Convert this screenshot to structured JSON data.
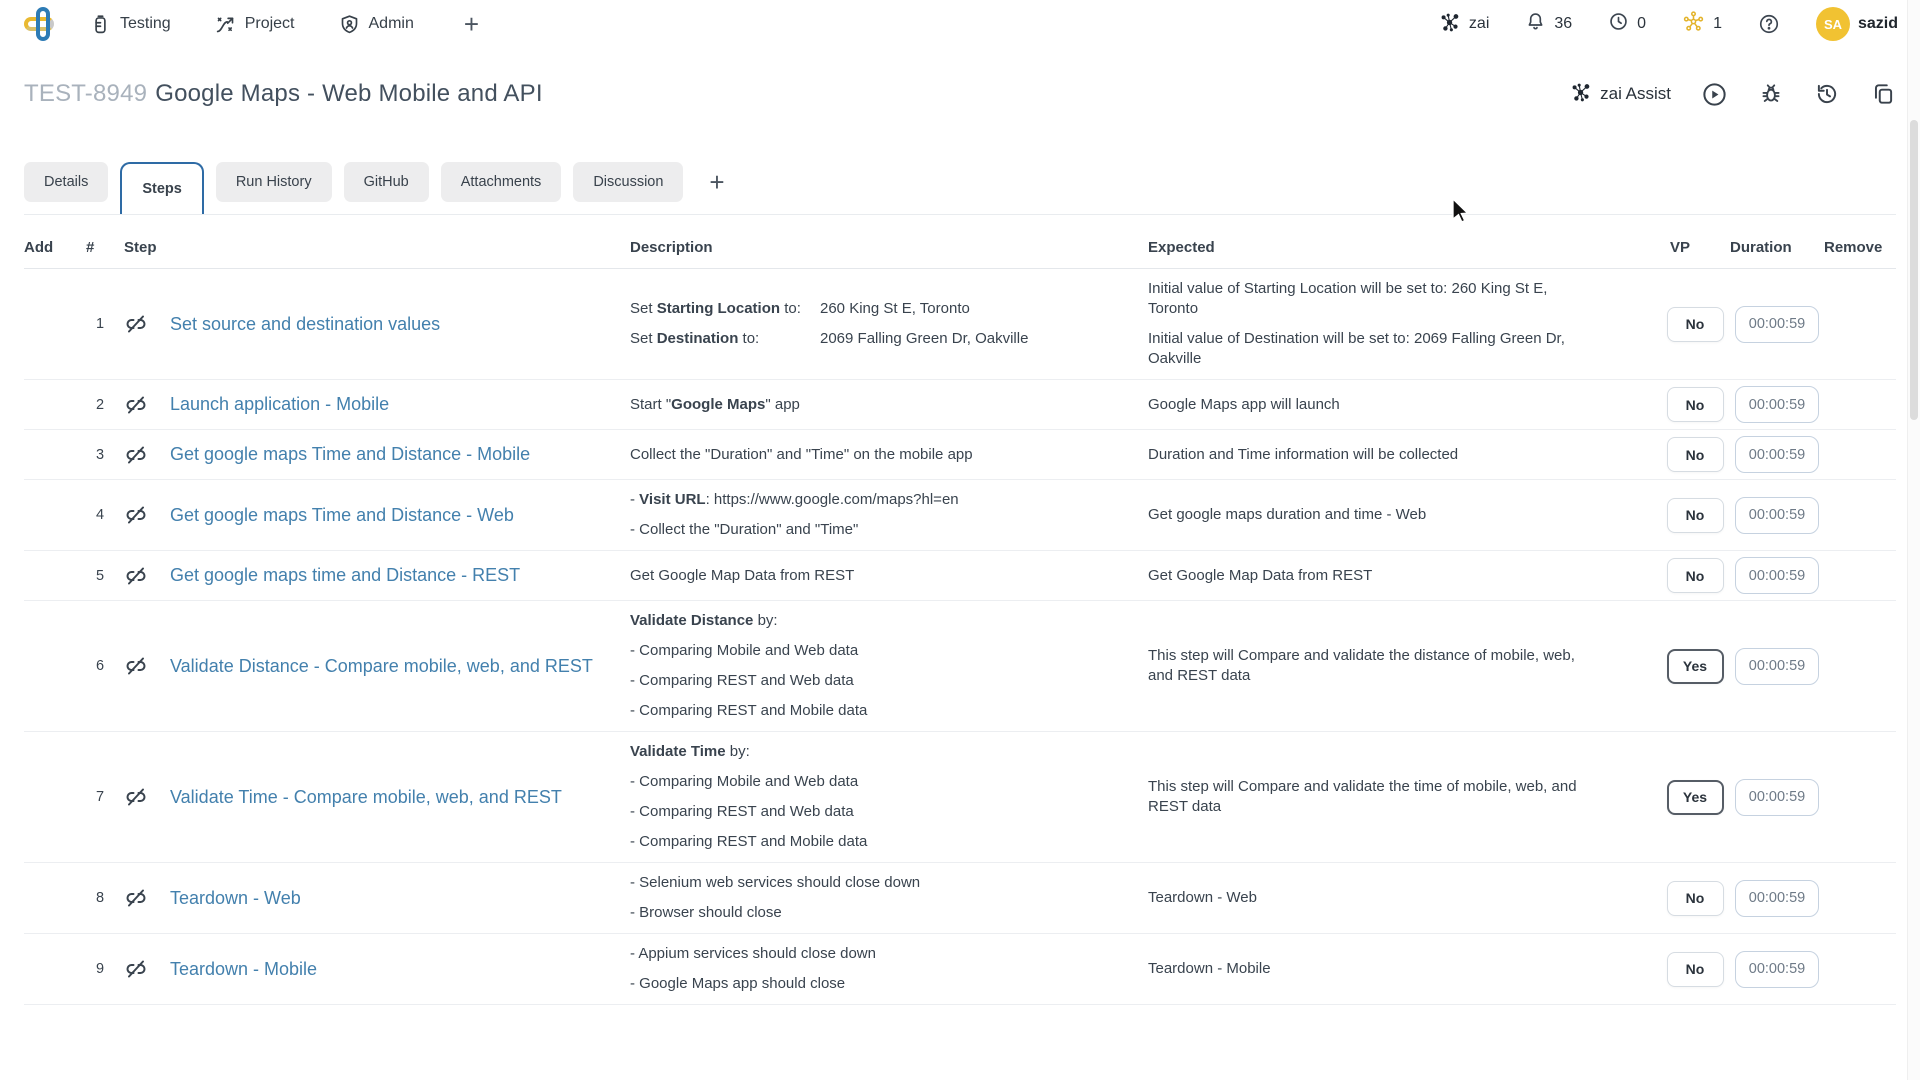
{
  "navbar": {
    "menu": [
      {
        "label": "Testing"
      },
      {
        "label": "Project"
      },
      {
        "label": "Admin"
      }
    ],
    "add_label": "+",
    "right": {
      "workspace_label": "zai",
      "notification_count": "36",
      "timer_count": "0",
      "network_count": "1",
      "avatar_initials": "SA",
      "username": "sazid"
    }
  },
  "header": {
    "ticket_id": "TEST-8949",
    "title": "Google Maps - Web Mobile and API",
    "assist_label": "zai Assist"
  },
  "tabs": {
    "items": [
      {
        "label": "Details"
      },
      {
        "label": "Steps"
      },
      {
        "label": "Run History"
      },
      {
        "label": "GitHub"
      },
      {
        "label": "Attachments"
      },
      {
        "label": "Discussion"
      }
    ],
    "active": "Steps",
    "add_label": "+"
  },
  "table": {
    "columns": [
      "Add",
      "#",
      "Step",
      "Description",
      "Expected",
      "VP",
      "Duration",
      "Remove"
    ],
    "steps": [
      {
        "num": "1",
        "title": "Set source and destination values",
        "desc": [
          "Set **Starting Location** to:\t260 King St E, Toronto",
          "Set **Destination** to:\t2069 Falling Green Dr, Oakville"
        ],
        "expected": [
          "Initial value of Starting Location will be set to: 260 King St E, Toronto",
          "Initial value of Destination will be set to: 2069 Falling Green Dr, Oakville"
        ],
        "vp": "No",
        "duration": "00:00:59"
      },
      {
        "num": "2",
        "title": "Launch application - Mobile",
        "desc": [
          "Start \"**Google Maps**\" app"
        ],
        "expected": [
          "Google Maps app will launch"
        ],
        "vp": "No",
        "duration": "00:00:59"
      },
      {
        "num": "3",
        "title": "Get google maps Time and Distance - Mobile",
        "desc": [
          "Collect the \"Duration\" and \"Time\" on the mobile app"
        ],
        "expected": [
          "Duration and Time information will be collected"
        ],
        "vp": "No",
        "duration": "00:00:59"
      },
      {
        "num": "4",
        "title": "Get google maps Time and Distance - Web",
        "desc": [
          "- **Visit URL**: https://www.google.com/maps?hl=en",
          "- Collect the \"Duration\" and \"Time\""
        ],
        "expected": [
          "Get google maps duration and time - Web"
        ],
        "vp": "No",
        "duration": "00:00:59"
      },
      {
        "num": "5",
        "title": "Get google maps time and Distance - REST",
        "desc": [
          "Get Google Map Data from REST"
        ],
        "expected": [
          "Get Google Map Data from REST"
        ],
        "vp": "No",
        "duration": "00:00:59"
      },
      {
        "num": "6",
        "title": "Validate Distance - Compare mobile, web, and REST",
        "desc": [
          "**Validate Distance** by:",
          "- Comparing Mobile and Web data",
          "- Comparing REST and Web data",
          "- Comparing REST and Mobile data"
        ],
        "expected": [
          "This step will Compare and validate the distance of mobile, web, and REST data"
        ],
        "vp": "Yes",
        "duration": "00:00:59"
      },
      {
        "num": "7",
        "title": "Validate Time - Compare mobile, web, and REST",
        "desc": [
          "**Validate Time** by:",
          "- Comparing Mobile and Web data",
          "- Comparing REST and Web data",
          "- Comparing REST and Mobile data"
        ],
        "expected": [
          "This step will Compare and validate the time of mobile, web, and REST data"
        ],
        "vp": "Yes",
        "duration": "00:00:59"
      },
      {
        "num": "8",
        "title": "Teardown - Web",
        "desc": [
          "- Selenium web services should close down",
          "- Browser should close"
        ],
        "expected": [
          "Teardown - Web"
        ],
        "vp": "No",
        "duration": "00:00:59"
      },
      {
        "num": "9",
        "title": "Teardown - Mobile",
        "desc": [
          "- Appium services should close down",
          "- Google Maps app should close"
        ],
        "expected": [
          "Teardown - Mobile"
        ],
        "vp": "No",
        "duration": "00:00:59"
      }
    ]
  },
  "colors": {
    "accent_blue": "#2e6ba5",
    "link_blue": "#4380ad",
    "avatar_yellow": "#f1c232",
    "network_yellow": "#e3b32a"
  }
}
